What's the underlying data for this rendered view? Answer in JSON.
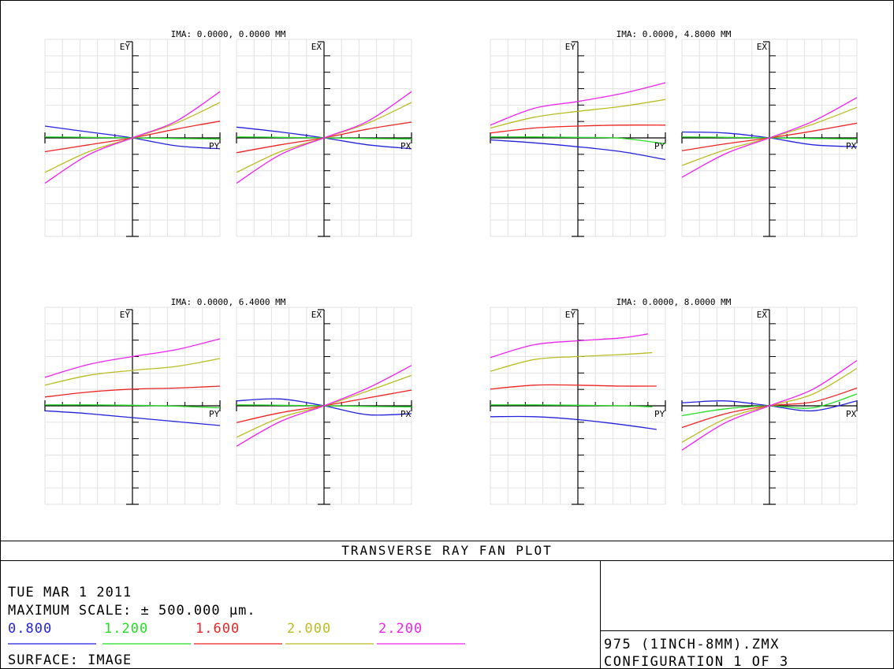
{
  "plot_title": "TRANSVERSE RAY FAN PLOT",
  "date": "TUE MAR 1 2011",
  "max_scale": "MAXIMUM SCALE: ± 500.000 µm.",
  "surface": "SURFACE: IMAGE",
  "file_name": "975 (1INCH-8MM).ZMX",
  "configuration": "CONFIGURATION 1 OF 3",
  "wavelengths": [
    {
      "label": "0.800",
      "color": "#2222dd"
    },
    {
      "label": "1.200",
      "color": "#22dd22"
    },
    {
      "label": "1.600",
      "color": "#ee2222"
    },
    {
      "label": "2.000",
      "color": "#bbbb22"
    },
    {
      "label": "2.200",
      "color": "#ee22ee"
    }
  ],
  "chart_data": [
    {
      "type": "line",
      "field_label": "IMA: 0.0000, 0.0000 MM",
      "tangential": {
        "ylabel": "EY",
        "xlabel": "PY",
        "xlim": [
          -1,
          1
        ],
        "ylim": [
          -500,
          500
        ],
        "series": [
          {
            "name": "0.800",
            "x": [
              -1,
              -0.5,
              0,
              0.5,
              1
            ],
            "y": [
              60,
              30,
              0,
              -40,
              -55
            ]
          },
          {
            "name": "1.200",
            "x": [
              -1,
              -0.5,
              0,
              0.5,
              1
            ],
            "y": [
              5,
              3,
              0,
              -3,
              -5
            ]
          },
          {
            "name": "1.600",
            "x": [
              -1,
              -0.5,
              0,
              0.5,
              1
            ],
            "y": [
              -70,
              -35,
              0,
              45,
              85
            ]
          },
          {
            "name": "2.000",
            "x": [
              -1,
              -0.5,
              0,
              0.5,
              1
            ],
            "y": [
              -175,
              -70,
              0,
              75,
              180
            ]
          },
          {
            "name": "2.200",
            "x": [
              -1,
              -0.5,
              0,
              0.5,
              1
            ],
            "y": [
              -230,
              -85,
              0,
              85,
              235
            ]
          }
        ]
      },
      "sagittal": {
        "ylabel": "EX",
        "xlabel": "PX",
        "xlim": [
          -1,
          1
        ],
        "ylim": [
          -500,
          500
        ],
        "series": [
          {
            "name": "0.800",
            "x": [
              -1,
              -0.5,
              0,
              0.5,
              1
            ],
            "y": [
              55,
              30,
              0,
              -35,
              -55
            ]
          },
          {
            "name": "1.200",
            "x": [
              -1,
              -0.5,
              0,
              0.5,
              1
            ],
            "y": [
              5,
              3,
              0,
              -3,
              -5
            ]
          },
          {
            "name": "1.600",
            "x": [
              -1,
              -0.5,
              0,
              0.5,
              1
            ],
            "y": [
              -75,
              -35,
              0,
              45,
              80
            ]
          },
          {
            "name": "2.000",
            "x": [
              -1,
              -0.5,
              0,
              0.5,
              1
            ],
            "y": [
              -175,
              -70,
              0,
              75,
              180
            ]
          },
          {
            "name": "2.200",
            "x": [
              -1,
              -0.5,
              0,
              0.5,
              1
            ],
            "y": [
              -230,
              -85,
              0,
              85,
              235
            ]
          }
        ]
      }
    },
    {
      "type": "line",
      "field_label": "IMA: 0.0000, 4.8000 MM",
      "tangential": {
        "ylabel": "EY",
        "xlabel": "PY",
        "xlim": [
          -1,
          1
        ],
        "ylim": [
          -500,
          500
        ],
        "series": [
          {
            "name": "0.800",
            "x": [
              -1,
              -0.5,
              0,
              0.5,
              1
            ],
            "y": [
              -10,
              -25,
              -45,
              -70,
              -110
            ]
          },
          {
            "name": "1.200",
            "x": [
              -1,
              -0.5,
              0,
              0.5,
              1
            ],
            "y": [
              5,
              5,
              3,
              -2,
              -30
            ]
          },
          {
            "name": "1.600",
            "x": [
              -1,
              -0.5,
              0,
              0.5,
              1
            ],
            "y": [
              25,
              50,
              60,
              65,
              65
            ]
          },
          {
            "name": "2.000",
            "x": [
              -1,
              -0.5,
              0,
              0.5,
              1
            ],
            "y": [
              50,
              105,
              135,
              160,
              195
            ]
          },
          {
            "name": "2.200",
            "x": [
              -1,
              -0.5,
              0,
              0.5,
              1
            ],
            "y": [
              65,
              150,
              185,
              225,
              280
            ]
          }
        ]
      },
      "sagittal": {
        "ylabel": "EX",
        "xlabel": "PX",
        "xlim": [
          -1,
          1
        ],
        "ylim": [
          -500,
          500
        ],
        "series": [
          {
            "name": "0.800",
            "x": [
              -1,
              -0.5,
              0,
              0.5,
              1
            ],
            "y": [
              30,
              25,
              0,
              -35,
              -45
            ]
          },
          {
            "name": "1.200",
            "x": [
              -1,
              -0.5,
              0,
              0.5,
              1
            ],
            "y": [
              5,
              3,
              0,
              -3,
              -5
            ]
          },
          {
            "name": "1.600",
            "x": [
              -1,
              -0.5,
              0,
              0.5,
              1
            ],
            "y": [
              -65,
              -30,
              0,
              35,
              75
            ]
          },
          {
            "name": "2.000",
            "x": [
              -1,
              -0.5,
              0,
              0.5,
              1
            ],
            "y": [
              -140,
              -60,
              0,
              70,
              155
            ]
          },
          {
            "name": "2.200",
            "x": [
              -1,
              -0.5,
              0,
              0.5,
              1
            ],
            "y": [
              -200,
              -80,
              0,
              85,
              205
            ]
          }
        ]
      }
    },
    {
      "type": "line",
      "field_label": "IMA: 0.0000, 6.4000 MM",
      "tangential": {
        "ylabel": "EY",
        "xlabel": "PY",
        "xlim": [
          -1,
          1
        ],
        "ylim": [
          -500,
          500
        ],
        "series": [
          {
            "name": "0.800",
            "x": [
              -1,
              -0.5,
              0,
              0.5,
              1
            ],
            "y": [
              -25,
              -40,
              -60,
              -80,
              -100
            ]
          },
          {
            "name": "1.200",
            "x": [
              -1,
              -0.5,
              0,
              0.5,
              1
            ],
            "y": [
              5,
              5,
              3,
              -2,
              -10
            ]
          },
          {
            "name": "1.600",
            "x": [
              -1,
              -0.5,
              0,
              0.5,
              1
            ],
            "y": [
              45,
              70,
              85,
              90,
              100
            ]
          },
          {
            "name": "2.000",
            "x": [
              -1,
              -0.5,
              0,
              0.5,
              1
            ],
            "y": [
              105,
              155,
              180,
              200,
              240
            ]
          },
          {
            "name": "2.200",
            "x": [
              -1,
              -0.5,
              0,
              0.5,
              1
            ],
            "y": [
              145,
              210,
              250,
              285,
              340
            ]
          }
        ]
      },
      "sagittal": {
        "ylabel": "EX",
        "xlabel": "PX",
        "xlim": [
          -1,
          1
        ],
        "ylim": [
          -500,
          500
        ],
        "series": [
          {
            "name": "0.800",
            "x": [
              -1,
              -0.5,
              0,
              0.5,
              1
            ],
            "y": [
              25,
              35,
              0,
              -45,
              -40
            ]
          },
          {
            "name": "1.200",
            "x": [
              -1,
              -0.5,
              0,
              0.5,
              1
            ],
            "y": [
              5,
              3,
              0,
              -3,
              -5
            ]
          },
          {
            "name": "1.600",
            "x": [
              -1,
              -0.5,
              0,
              0.5,
              1
            ],
            "y": [
              -85,
              -35,
              0,
              40,
              80
            ]
          },
          {
            "name": "2.000",
            "x": [
              -1,
              -0.5,
              0,
              0.5,
              1
            ],
            "y": [
              -160,
              -60,
              0,
              75,
              155
            ]
          },
          {
            "name": "2.200",
            "x": [
              -1,
              -0.5,
              0,
              0.5,
              1
            ],
            "y": [
              -205,
              -80,
              0,
              90,
              205
            ]
          }
        ]
      }
    },
    {
      "type": "line",
      "field_label": "IMA: 0.0000, 8.0000 MM",
      "tangential": {
        "ylabel": "EY",
        "xlabel": "PY",
        "xlim": [
          -1,
          1
        ],
        "ylim": [
          -500,
          500
        ],
        "series": [
          {
            "name": "0.800",
            "x": [
              -1,
              -0.5,
              0,
              0.5,
              0.9
            ],
            "y": [
              -55,
              -55,
              -70,
              -95,
              -120
            ]
          },
          {
            "name": "1.200",
            "x": [
              -1,
              -0.5,
              0,
              0.5,
              0.85
            ],
            "y": [
              5,
              5,
              3,
              0,
              -5
            ]
          },
          {
            "name": "1.600",
            "x": [
              -1,
              -0.5,
              0,
              0.5,
              0.9
            ],
            "y": [
              85,
              105,
              105,
              100,
              100
            ]
          },
          {
            "name": "2.000",
            "x": [
              -1,
              -0.5,
              0,
              0.5,
              0.85
            ],
            "y": [
              175,
              235,
              250,
              260,
              270
            ]
          },
          {
            "name": "2.200",
            "x": [
              -1,
              -0.5,
              0,
              0.5,
              0.8
            ],
            "y": [
              245,
              310,
              330,
              345,
              365
            ]
          }
        ]
      },
      "sagittal": {
        "ylabel": "EX",
        "xlabel": "PX",
        "xlim": [
          -1,
          1
        ],
        "ylim": [
          -500,
          500
        ],
        "series": [
          {
            "name": "0.800",
            "x": [
              -1,
              -0.5,
              0,
              0.5,
              1
            ],
            "y": [
              15,
              25,
              0,
              -25,
              25
            ]
          },
          {
            "name": "1.200",
            "x": [
              -1,
              -0.5,
              0,
              0.5,
              1
            ],
            "y": [
              -50,
              -15,
              0,
              -10,
              60
            ]
          },
          {
            "name": "1.600",
            "x": [
              -1,
              -0.5,
              0,
              0.5,
              1
            ],
            "y": [
              -110,
              -40,
              0,
              20,
              90
            ]
          },
          {
            "name": "2.000",
            "x": [
              -1,
              -0.5,
              0,
              0.5,
              1
            ],
            "y": [
              -185,
              -65,
              0,
              60,
              190
            ]
          },
          {
            "name": "2.200",
            "x": [
              -1,
              -0.5,
              0,
              0.5,
              1
            ],
            "y": [
              -225,
              -85,
              0,
              85,
              230
            ]
          }
        ]
      }
    }
  ]
}
